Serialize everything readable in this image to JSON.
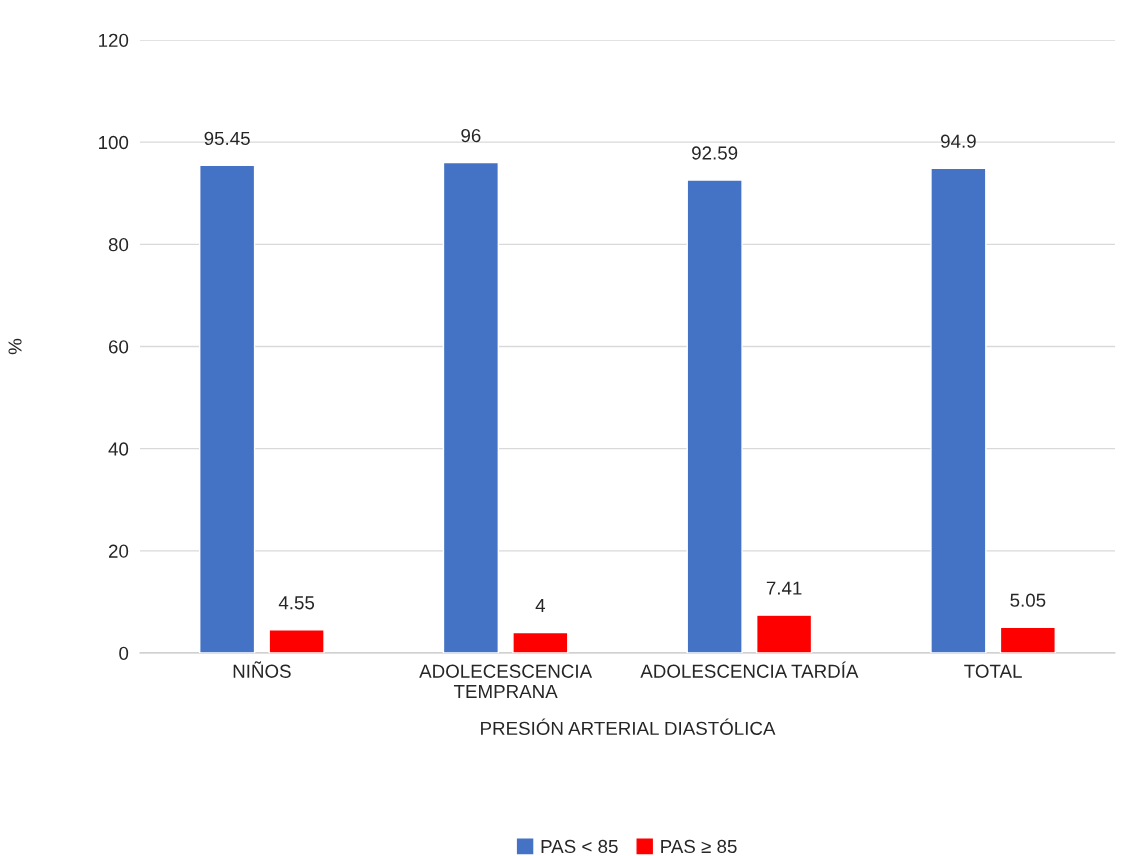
{
  "chart_data": {
    "type": "bar",
    "xlabel": "PRESIÓN ARTERIAL DIASTÓLICA",
    "ylabel": "%",
    "categories": [
      "NIÑOS",
      "ADOLECESCENCIA TEMPRANA",
      "ADOLESCENCIA TARDÍA",
      "TOTAL"
    ],
    "series": [
      {
        "name": "PAS < 85",
        "color": "#4472c4",
        "values": [
          95.45,
          96,
          92.59,
          94.9
        ]
      },
      {
        "name": "PAS ≥ 85",
        "color": "#ff0000",
        "values": [
          4.55,
          4,
          7.41,
          5.05
        ]
      }
    ],
    "ylim": [
      0,
      120
    ],
    "yticks": [
      0,
      20,
      40,
      60,
      80,
      100,
      120
    ],
    "grid": "y",
    "legend": "bottom",
    "data_labels": true
  }
}
